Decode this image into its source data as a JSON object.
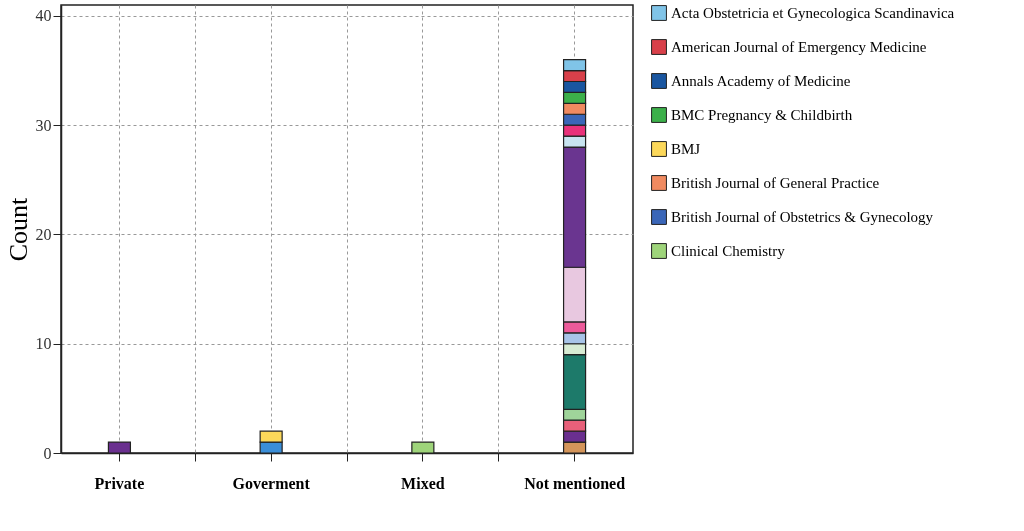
{
  "chart_data": {
    "type": "bar",
    "ylabel": "Count",
    "stacked": true,
    "categories": [
      "Private",
      null,
      "Goverment",
      null,
      "Mixed",
      null,
      "Not mentioned"
    ],
    "ylim": [
      0,
      41
    ],
    "yticks": [
      0,
      10,
      20,
      30,
      40
    ],
    "grid": true,
    "legend": "right",
    "series": [
      {
        "color": "#d4955a",
        "values": [
          null,
          null,
          null,
          null,
          null,
          null,
          1
        ]
      },
      {
        "color": "#6a2f8f",
        "values": [
          1,
          null,
          null,
          null,
          null,
          null,
          1
        ]
      },
      {
        "color": "#e8607a",
        "values": [
          null,
          null,
          null,
          null,
          null,
          null,
          1
        ]
      },
      {
        "color": "#9fd49a",
        "values": [
          null,
          null,
          null,
          null,
          null,
          null,
          1
        ]
      },
      {
        "color": "#1d7a6a",
        "values": [
          null,
          null,
          null,
          null,
          null,
          null,
          5
        ]
      },
      {
        "color": "#d8ecd4",
        "values": [
          null,
          null,
          null,
          null,
          null,
          null,
          1
        ]
      },
      {
        "color": "#a8c4e8",
        "values": [
          null,
          null,
          null,
          null,
          null,
          null,
          1
        ]
      },
      {
        "color": "#ec5a9a",
        "values": [
          null,
          null,
          null,
          null,
          null,
          null,
          1
        ]
      },
      {
        "color": "#e8c8e0",
        "values": [
          null,
          null,
          null,
          null,
          null,
          null,
          5
        ]
      },
      {
        "color": "#6a3590",
        "values": [
          null,
          null,
          null,
          null,
          null,
          null,
          11
        ]
      },
      {
        "color": "#c8e4f0",
        "values": [
          null,
          null,
          null,
          null,
          null,
          null,
          1
        ]
      },
      {
        "color": "#e8327a",
        "values": [
          null,
          null,
          null,
          null,
          null,
          null,
          1
        ]
      },
      {
        "color": "#3a8ed8",
        "values": [
          null,
          null,
          1,
          null,
          null,
          null,
          null
        ]
      },
      {
        "name": "Clinical Chemistry",
        "color": "#9ed47a",
        "values": [
          null,
          null,
          null,
          null,
          1,
          null,
          null
        ]
      },
      {
        "name": "British Journal of Obstetrics & Gynecology",
        "color": "#3a66b8",
        "values": [
          null,
          null,
          null,
          null,
          null,
          null,
          1
        ]
      },
      {
        "name": "British Journal of General Practice",
        "color": "#f08a60",
        "values": [
          null,
          null,
          null,
          null,
          null,
          null,
          1
        ]
      },
      {
        "name": "BMJ",
        "color": "#fcd85a",
        "values": [
          null,
          null,
          1,
          null,
          null,
          null,
          null
        ]
      },
      {
        "name": "BMC Pregnancy & Childbirth",
        "color": "#3cb04a",
        "values": [
          null,
          null,
          null,
          null,
          null,
          null,
          1
        ]
      },
      {
        "name": "Annals Academy of Medicine",
        "color": "#1a56a0",
        "values": [
          null,
          null,
          null,
          null,
          null,
          null,
          1
        ]
      },
      {
        "name": "American Journal of Emergency Medicine",
        "color": "#d8404a",
        "values": [
          null,
          null,
          null,
          null,
          null,
          null,
          1
        ]
      },
      {
        "name": "Acta Obstetricia et Gynecologica Scandinavica",
        "color": "#80c4e8",
        "values": [
          null,
          null,
          null,
          null,
          null,
          null,
          1
        ]
      }
    ]
  }
}
